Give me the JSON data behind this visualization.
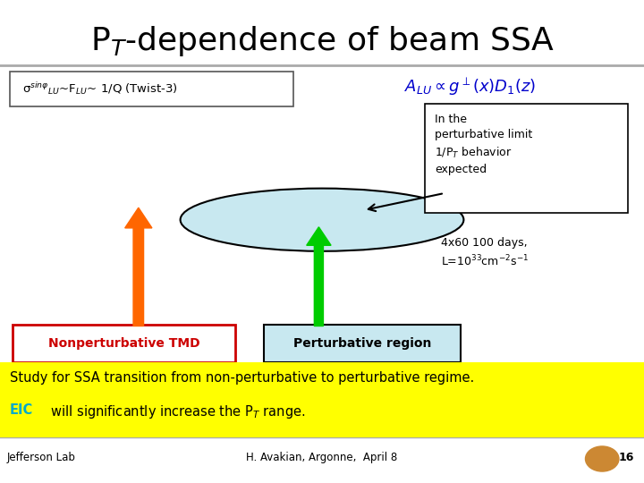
{
  "title": "P$_T$-dependence of beam SSA",
  "title_fontsize": 26,
  "bg_color": "#ffffff",
  "label_box_text": "σ$^{sinφ}$$_{LU}$~F$_{LU}$~ 1/Q (Twist-3)",
  "info_box_text": "In the\nperturbative limit\n1/P$_T$ behavior\nexpected",
  "days_text": "4x60 100 days,\nL=10$^{33}$cm$^{-2}$s$^{-1}$",
  "nonpert_label": "Nonperturbative TMD",
  "pert_label": "Perturbative region",
  "bottom_text_line1": "Study for SSA transition from non-perturbative to perturbative regime.",
  "bottom_text_line2_prefix": "EIC",
  "bottom_text_line2_suffix": " will significantly increase the P$_T$ range.",
  "footer_left": "Jefferson Lab",
  "footer_center": "H. Avakian, Argonne,  April 8",
  "footer_page": "16",
  "ellipse_color": "#c8e8f0",
  "ellipse_edge": "#000000",
  "orange_arrow_color": "#ff6600",
  "green_arrow_color": "#00cc00",
  "nonpert_box_color": "#ffffff",
  "nonpert_text_color": "#cc0000",
  "nonpert_border_color": "#cc0000",
  "pert_box_color": "#c8e8f0",
  "pert_text_color": "#000000",
  "pert_border_color": "#000000",
  "bottom_bg_color": "#ffff00",
  "formula_color": "#0000cc",
  "separator_color": "#aaaaaa"
}
